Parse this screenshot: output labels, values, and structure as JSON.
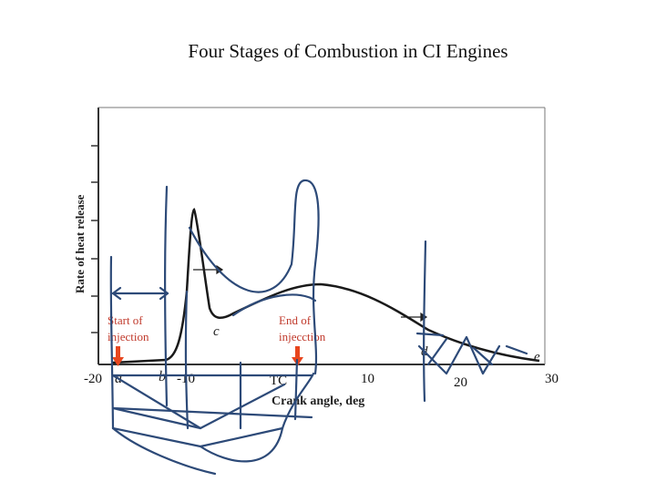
{
  "title": "Four Stages of Combustion in CI Engines",
  "ylabel": "Rate of heat release",
  "xlabel": "Crank angle, deg",
  "axis_ticks": [
    "-20",
    "-10",
    "TC",
    "10",
    "20",
    "30"
  ],
  "curve_points": [
    "a",
    "b",
    "c",
    "d",
    "e"
  ],
  "annotations": {
    "start_injection_line1": "Start of",
    "start_injection_line2": "injection",
    "end_injection_line1": "End of",
    "end_injection_line2": "injecction"
  },
  "colors": {
    "ink": "#2d4a78",
    "marker": "#e8461e",
    "curve": "#1a1a1a"
  }
}
